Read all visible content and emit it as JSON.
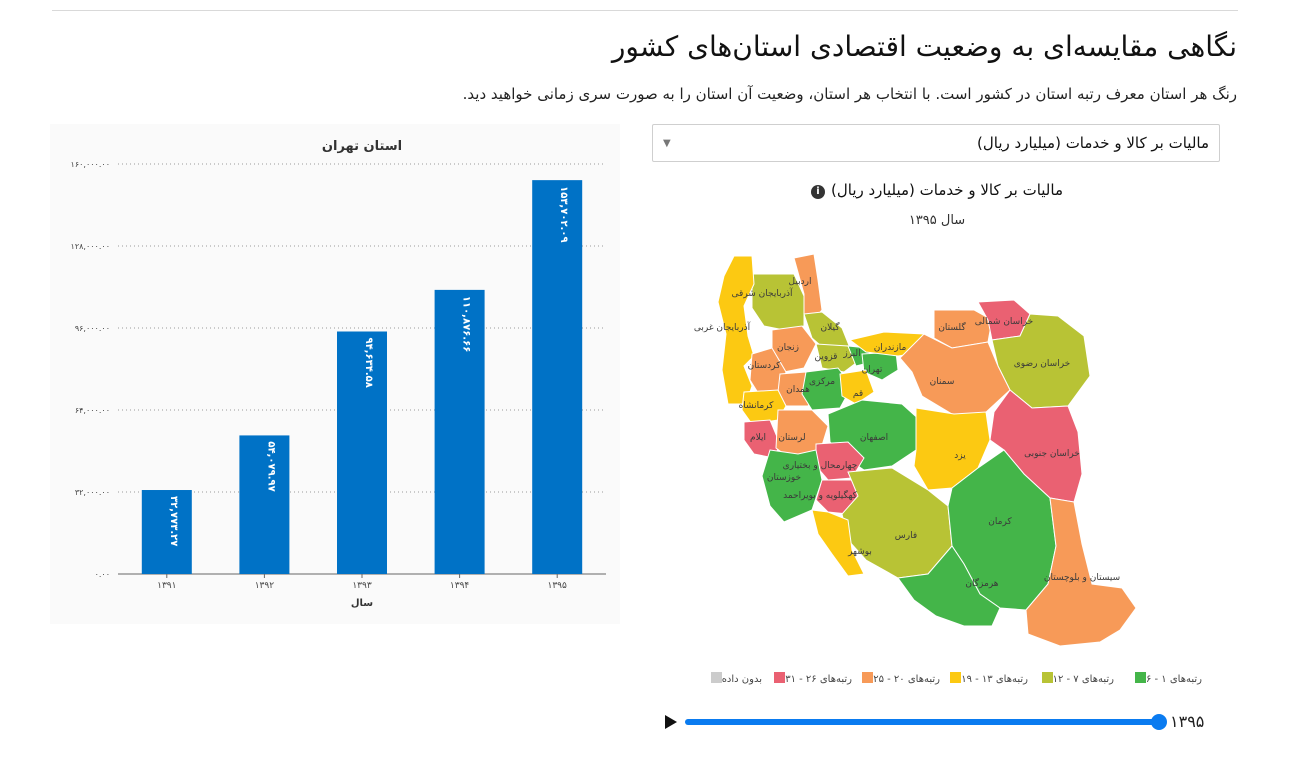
{
  "page": {
    "title": "نگاهی مقایسه‌ای به وضعیت اقتصادی استان‌های کشور",
    "subtitle": "رنگ هر استان معرف رتبه استان در کشور است. با انتخاب هر استان، وضعیت آن استان را به صورت سری زمانی خواهید دید."
  },
  "chart_data": {
    "type": "bar",
    "title": "استان تهران",
    "xlabel": "سال",
    "ylabel": "",
    "categories": [
      "۱۳۹۱",
      "۱۳۹۲",
      "۱۳۹۳",
      "۱۳۹۴",
      "۱۳۹۵"
    ],
    "values": [
      32773.27,
      54079.97,
      94634.58,
      110876.66,
      153702.09
    ],
    "value_labels": [
      "۳۲,۷۷۳.۲۷",
      "۵۴,۰۷۹.۹۷",
      "۹۴,۶۳۴.۵۸",
      "۱۱۰,۸۷۶.۶۶",
      "۱۵۳,۷۰۲.۰۹"
    ],
    "y_ticks": [
      0,
      32000,
      64000,
      96000,
      128000,
      160000
    ],
    "y_tick_labels": [
      "۰.۰۰",
      "۳۲,۰۰۰.۰۰",
      "۶۴,۰۰۰.۰۰",
      "۹۶,۰۰۰.۰۰",
      "۱۲۸,۰۰۰.۰۰",
      "۱۶۰,۰۰۰.۰۰"
    ],
    "ylim": [
      0,
      160000
    ],
    "grid": true,
    "bar_color": "#0072c6"
  },
  "map": {
    "select_value": "مالیات بر کالا و خدمات (میلیارد ریال)",
    "title": "مالیات بر کالا و خدمات (میلیارد ریال)",
    "year_label": "سال ۱۳۹۵",
    "provinces": [
      {
        "name": "اردبیل",
        "rank_group": "r20"
      },
      {
        "name": "آذربایجان شرقی",
        "rank_group": "r12"
      },
      {
        "name": "آذربایجان غربی",
        "rank_group": "r19"
      },
      {
        "name": "گیلان",
        "rank_group": "r12"
      },
      {
        "name": "زنجان",
        "rank_group": "r20"
      },
      {
        "name": "کردستان",
        "rank_group": "r20"
      },
      {
        "name": "قزوین",
        "rank_group": "r12"
      },
      {
        "name": "البرز",
        "rank_group": "r6"
      },
      {
        "name": "تهران",
        "rank_group": "r6"
      },
      {
        "name": "مازندران",
        "rank_group": "r19"
      },
      {
        "name": "گلستان",
        "rank_group": "r20"
      },
      {
        "name": "خراسان شمالی",
        "rank_group": "r31"
      },
      {
        "name": "خراسان رضوی",
        "rank_group": "r12"
      },
      {
        "name": "سمنان",
        "rank_group": "r20"
      },
      {
        "name": "همدان",
        "rank_group": "r20"
      },
      {
        "name": "مرکزی",
        "rank_group": "r6"
      },
      {
        "name": "قم",
        "rank_group": "r19"
      },
      {
        "name": "کرمانشاه",
        "rank_group": "r19"
      },
      {
        "name": "ایلام",
        "rank_group": "r31"
      },
      {
        "name": "لرستان",
        "rank_group": "r20"
      },
      {
        "name": "اصفهان",
        "rank_group": "r6"
      },
      {
        "name": "یزد",
        "rank_group": "r19"
      },
      {
        "name": "خراسان جنوبی",
        "rank_group": "r31"
      },
      {
        "name": "چهارمحال و بختیاری",
        "rank_group": "r31"
      },
      {
        "name": "خوزستان",
        "rank_group": "r6"
      },
      {
        "name": "کهگیلویه و بویراحمد",
        "rank_group": "r31"
      },
      {
        "name": "فارس",
        "rank_group": "r12"
      },
      {
        "name": "بوشهر",
        "rank_group": "r19"
      },
      {
        "name": "کرمان",
        "rank_group": "r6"
      },
      {
        "name": "هرمزگان",
        "rank_group": "r6"
      },
      {
        "name": "سیستان و بلوچستان",
        "rank_group": "r20"
      }
    ],
    "legend": [
      {
        "label": "رتبه‌های ۱ - ۶",
        "color": "#44b549"
      },
      {
        "label": "رتبه‌های ۷ - ۱۲",
        "color": "#b8c335"
      },
      {
        "label": "رتبه‌های ۱۳ - ۱۹",
        "color": "#fcc912"
      },
      {
        "label": "رتبه‌های ۲۰ - ۲۵",
        "color": "#f79a58"
      },
      {
        "label": "رتبه‌های ۲۶ - ۳۱",
        "color": "#ea6172"
      },
      {
        "label": "بدون داده",
        "color": "#cccccc"
      }
    ],
    "slider": {
      "label": "۱۳۹۵",
      "position": 1.0,
      "play_icon": "play-icon"
    }
  },
  "colors": {
    "r6": "#44b549",
    "r12": "#b8c335",
    "r19": "#fcc912",
    "r20": "#f79a58",
    "r31": "#ea6172",
    "accent": "#0a7bf0"
  }
}
